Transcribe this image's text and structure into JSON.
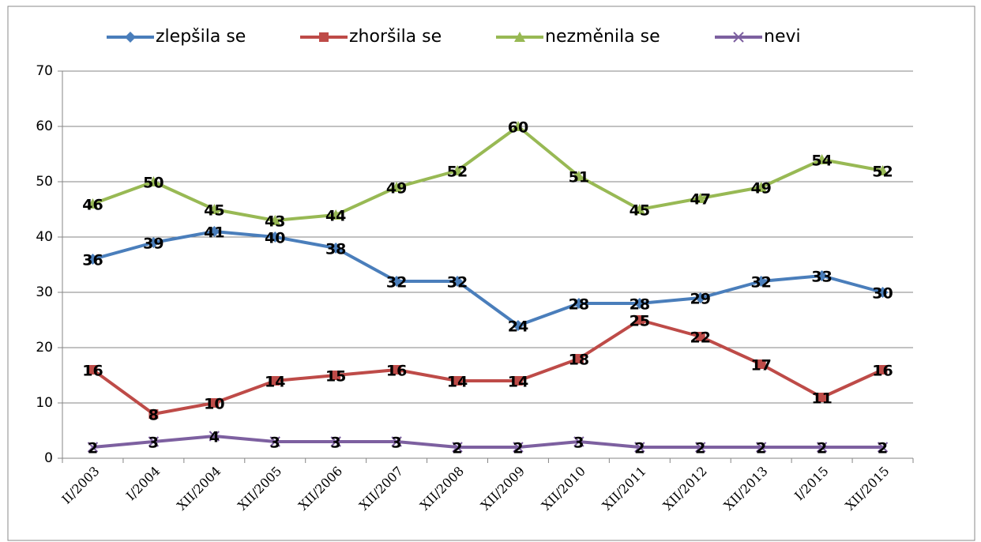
{
  "chart_data": {
    "type": "line",
    "categories": [
      "II/2003",
      "I/2004",
      "XII/2004",
      "XII/2005",
      "XII/2006",
      "XII/2007",
      "XII/2008",
      "XII/2009",
      "XII/2010",
      "XII/2011",
      "XII/2012",
      "XII/2013",
      "I/2015",
      "XII/2015"
    ],
    "series": [
      {
        "name": "zlepšila se",
        "color": "#4a7ebb",
        "marker": "diamond",
        "values": [
          36,
          39,
          41,
          40,
          38,
          32,
          32,
          24,
          28,
          28,
          29,
          32,
          33,
          30
        ]
      },
      {
        "name": "zhoršila se",
        "color": "#be4b48",
        "marker": "square",
        "values": [
          16,
          8,
          10,
          14,
          15,
          16,
          14,
          14,
          18,
          25,
          22,
          17,
          11,
          16
        ]
      },
      {
        "name": "nezměnila se",
        "color": "#98b954",
        "marker": "triangle",
        "values": [
          46,
          50,
          45,
          43,
          44,
          49,
          52,
          60,
          51,
          45,
          47,
          49,
          54,
          52
        ]
      },
      {
        "name": "nevi",
        "color": "#7d60a0",
        "marker": "x",
        "values": [
          2,
          3,
          4,
          3,
          3,
          3,
          2,
          2,
          3,
          2,
          2,
          2,
          2,
          2
        ]
      }
    ],
    "ylim": [
      0,
      70
    ],
    "yticks": [
      0,
      10,
      20,
      30,
      40,
      50,
      60,
      70
    ],
    "grid": true,
    "legend": "top"
  }
}
